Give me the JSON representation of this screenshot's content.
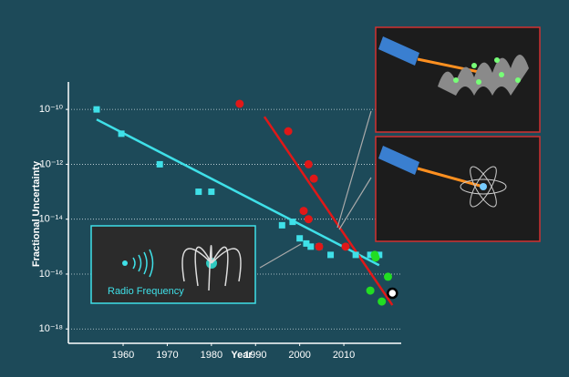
{
  "chart_data": {
    "type": "scatter",
    "xlabel": "Year",
    "ylabel": "Fractional Uncertainty",
    "log_y": true,
    "grid": true,
    "xlim": [
      1947.6,
      2023
    ],
    "xticks": [
      1960,
      1970,
      1980,
      1990,
      2000,
      2010
    ],
    "ylim": [
      3e-19,
      1e-09
    ],
    "yticks": [
      {
        "value": 1e-10,
        "label": "10⁻¹⁰"
      },
      {
        "value": 1e-12,
        "label": "10⁻¹²"
      },
      {
        "value": 1e-14,
        "label": "10⁻¹⁴"
      },
      {
        "value": 1e-16,
        "label": "10⁻¹⁶"
      },
      {
        "value": 1e-18,
        "label": "10⁻¹⁸"
      }
    ],
    "annotations": [
      "Radio Frequency"
    ],
    "series": [
      {
        "marker": "line",
        "color": "#3fe0e8",
        "x": [
          1954,
          2018
        ],
        "values": [
          4.3e-11,
          2.1e-16
        ]
      },
      {
        "marker": "line",
        "color": "#e01818",
        "x": [
          1992,
          2021
        ],
        "values": [
          5.4e-11,
          7.4e-18
        ]
      },
      {
        "marker": "square",
        "color": "#3fe0e8",
        "x": [
          1954,
          1959.6,
          1968.3,
          1977.1,
          1980,
          1996,
          1998.4,
          2000,
          2001.5,
          2002.5,
          2004.4,
          2007,
          2012.7,
          2016,
          2018
        ],
        "values": [
          1e-10,
          1.3e-11,
          1e-12,
          1e-13,
          1e-13,
          6e-15,
          8e-15,
          2e-15,
          1.3e-15,
          1e-15,
          1e-15,
          5e-16,
          5e-16,
          5e-16,
          5e-16
        ]
      },
      {
        "marker": "circle",
        "color": "#e01818",
        "x": [
          1986.4,
          1997.4,
          2002,
          2003.2,
          2000.9,
          2002,
          2004.4,
          2010.4
        ],
        "values": [
          1.6e-10,
          1.6e-11,
          1e-12,
          3e-13,
          2e-14,
          1e-14,
          1e-15,
          1e-15
        ]
      },
      {
        "marker": "circle",
        "color": "#22dd22",
        "x": [
          2017,
          2017.2,
          2020,
          2016,
          2018.6
        ],
        "values": [
          5e-16,
          4e-16,
          8e-17,
          2.5e-17,
          1e-17
        ]
      },
      {
        "marker": "ring",
        "color": "#ffffff",
        "x": [
          2021
        ],
        "values": [
          2e-17
        ]
      }
    ]
  }
}
